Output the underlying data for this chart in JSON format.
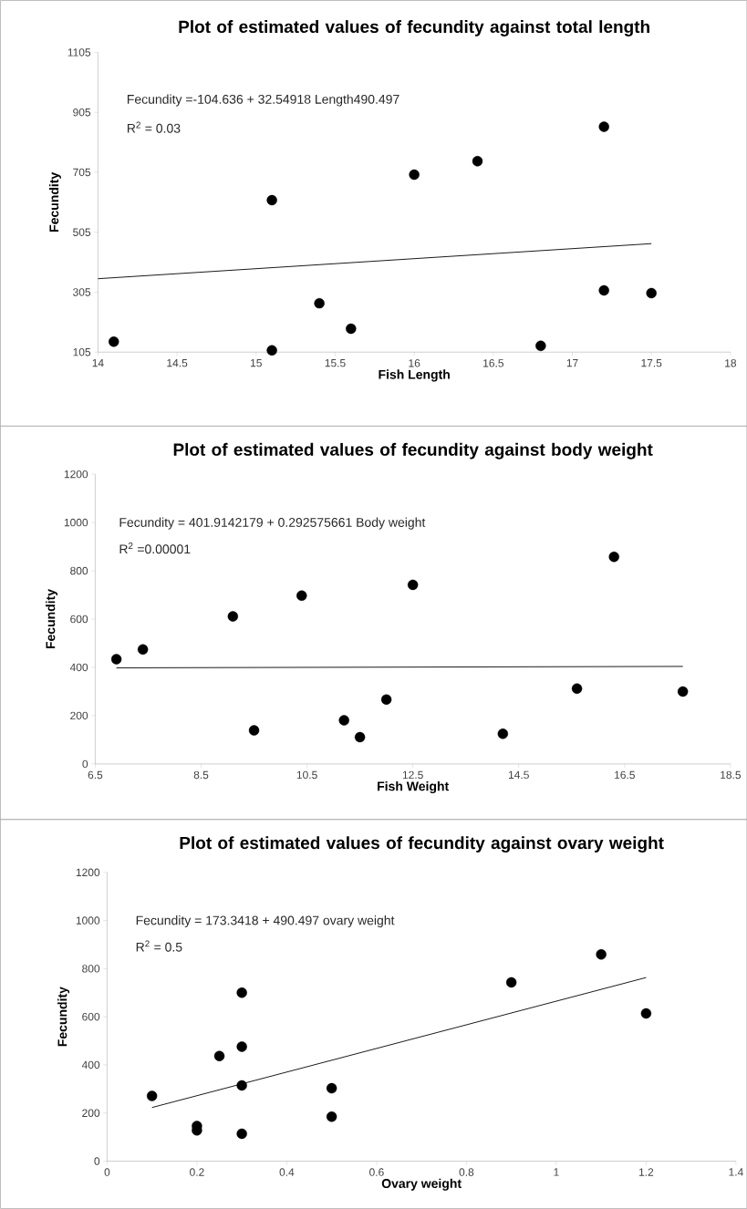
{
  "chart_data": [
    {
      "type": "scatter",
      "title": "Plot of estimated values of fecundity against total length",
      "xlabel": "Fish Length",
      "ylabel": "Fecundity",
      "marker": "circle",
      "annotations": [
        "Fecundity =-104.636  + 32.54918 Length490.497",
        "R$^{2}$ = 0.03"
      ],
      "xlim": [
        14,
        18
      ],
      "xticks": [
        14,
        14.5,
        15,
        15.5,
        16,
        16.5,
        17,
        17.5,
        18
      ],
      "ylim": [
        105,
        1105
      ],
      "yticks": [
        105,
        305,
        505,
        705,
        905,
        1105
      ],
      "series": [
        {
          "color": "#000000",
          "x": [
            14.1,
            15.1,
            15.1,
            15.4,
            15.6,
            16.0,
            16.4,
            16.8,
            17.2,
            17.2,
            17.5
          ],
          "values": [
            140,
            111,
            612,
            268,
            183,
            697,
            742,
            126,
            857,
            311,
            302
          ]
        },
        {
          "type": "line",
          "color": "#000000",
          "marker": "none",
          "x": [
            14,
            17.5
          ],
          "values": [
            350,
            467
          ]
        }
      ]
    },
    {
      "type": "scatter",
      "title": "Plot of estimated values of fecundity against body weight",
      "xlabel": "Fish Weight",
      "ylabel": "Fecundity",
      "marker": "circle",
      "annotations": [
        "Fecundity = 401.9142179  +  0.292575661 Body weight",
        "R$^{2}$ =0.00001"
      ],
      "xlim": [
        6.5,
        18.5
      ],
      "xticks": [
        6.5,
        8.5,
        10.5,
        12.5,
        14.5,
        16.5,
        18.5
      ],
      "ylim": [
        0,
        1200
      ],
      "yticks": [
        0,
        200,
        400,
        600,
        800,
        1000,
        1200
      ],
      "series": [
        {
          "color": "#000000",
          "x": [
            6.9,
            7.4,
            9.1,
            9.5,
            10.4,
            11.2,
            11.5,
            12.0,
            12.5,
            14.2,
            15.6,
            16.3,
            17.6
          ],
          "values": [
            434,
            474,
            611,
            139,
            697,
            181,
            111,
            267,
            742,
            125,
            312,
            858,
            300
          ]
        },
        {
          "type": "line",
          "color": "#000000",
          "marker": "none",
          "x": [
            6.9,
            17.6
          ],
          "values": [
            398,
            404
          ]
        }
      ]
    },
    {
      "type": "scatter",
      "title": "Plot of estimated values of fecundity against ovary weight",
      "xlabel": "Ovary weight",
      "ylabel": "Fecundity",
      "marker": "circle",
      "annotations": [
        "Fecundity = 173.3418  + 490.497 ovary weight",
        "R$^{2}$ = 0.5"
      ],
      "xlim": [
        0,
        1.4
      ],
      "xticks": [
        0,
        0.2,
        0.4,
        0.6,
        0.8,
        1,
        1.2,
        1.4
      ],
      "ylim": [
        0,
        1200
      ],
      "yticks": [
        0,
        200,
        400,
        600,
        800,
        1000,
        1200
      ],
      "series": [
        {
          "color": "#000000",
          "x": [
            0.1,
            0.2,
            0.2,
            0.25,
            0.3,
            0.3,
            0.3,
            0.3,
            0.5,
            0.5,
            0.9,
            1.1,
            1.2
          ],
          "values": [
            271,
            146,
            128,
            437,
            700,
            476,
            315,
            114,
            303,
            185,
            743,
            859,
            614
          ]
        },
        {
          "type": "line",
          "color": "#000000",
          "marker": "none",
          "x": [
            0.1,
            1.2
          ],
          "values": [
            223,
            763
          ]
        }
      ]
    }
  ]
}
